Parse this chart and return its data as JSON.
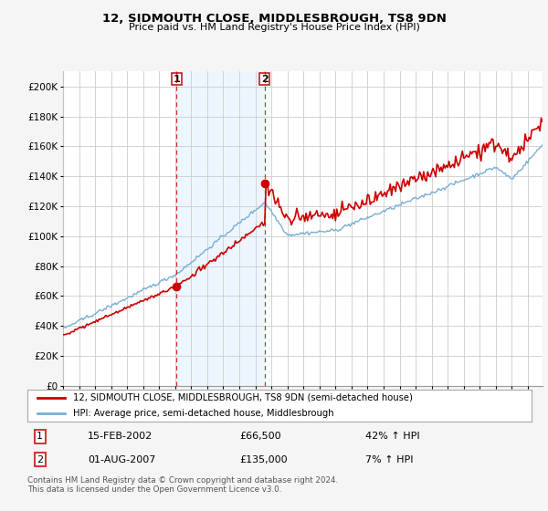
{
  "title": "12, SIDMOUTH CLOSE, MIDDLESBROUGH, TS8 9DN",
  "subtitle": "Price paid vs. HM Land Registry's House Price Index (HPI)",
  "hpi_label": "HPI: Average price, semi-detached house, Middlesbrough",
  "property_label": "12, SIDMOUTH CLOSE, MIDDLESBROUGH, TS8 9DN (semi-detached house)",
  "transaction1_date": "15-FEB-2002",
  "transaction1_price": 66500,
  "transaction1_hpi": "42% ↑ HPI",
  "transaction2_date": "01-AUG-2007",
  "transaction2_price": 135000,
  "transaction2_hpi": "7% ↑ HPI",
  "footer": "Contains HM Land Registry data © Crown copyright and database right 2024.\nThis data is licensed under the Open Government Licence v3.0.",
  "line_color_red": "#cc0000",
  "line_color_blue": "#7aaed4",
  "fill_color_blue": "#ddeeff",
  "background_color": "#f5f5f5",
  "plot_bg": "#ffffff",
  "grid_color": "#cccccc",
  "ylim": [
    0,
    210000
  ],
  "yticks": [
    0,
    20000,
    40000,
    60000,
    80000,
    100000,
    120000,
    140000,
    160000,
    180000,
    200000
  ]
}
